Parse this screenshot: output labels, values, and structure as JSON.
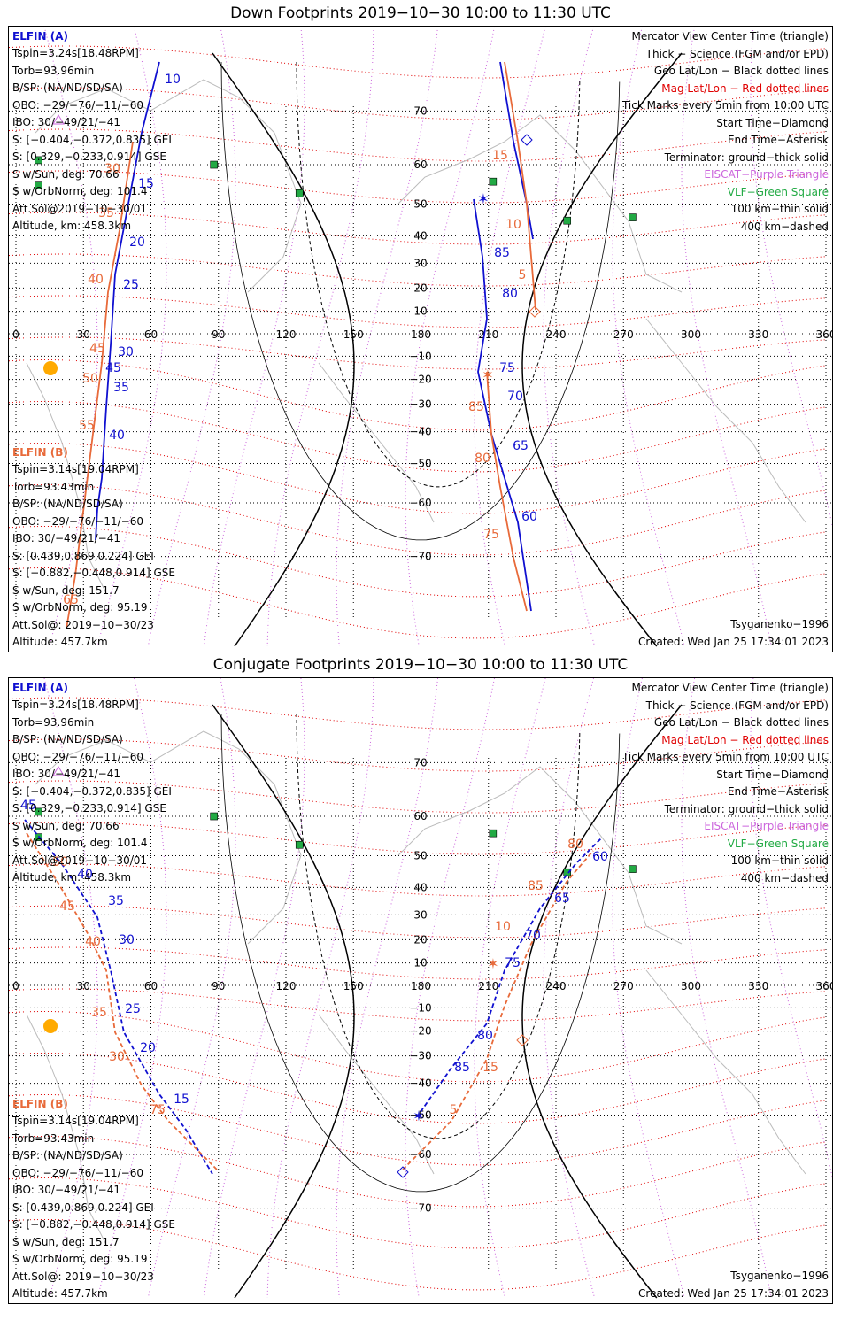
{
  "panels": [
    {
      "title": "Down Footprints 2019−10−30 10:00 to 11:30 UTC",
      "footer_left": "Altitude: 457.7km",
      "footer_right_top": "Tsyganenko−1996",
      "footer_right": "Created: Wed Jan 25 17:34:01 2023"
    },
    {
      "title": "Conjugate Footprints 2019−10−30 10:00 to 11:30 UTC",
      "footer_left": "Altitude: 457.7km",
      "footer_right_top": "Tsyganenko−1996",
      "footer_right": "Created: Wed Jan 25 17:34:01 2023"
    }
  ],
  "elfin_a": {
    "name": "ELFIN (A)",
    "lines": [
      "Tspin=3.24s[18.48RPM]",
      "Torb=93.96min",
      "B/SP: (NA/ND/SD/SA)",
      "OBO: −29/−76/−11/−60",
      "IBO: 30/−49/21/−41",
      "S: [−0.404,−0.372,0.835] GEI",
      "S: [0.329,−0.233,0.914] GSE",
      "S w/Sun, deg: 70.66",
      "S w/OrbNorm, deg: 101.4",
      "Att.Sol@2019−10−30/01",
      "Altitude, km: 458.3km"
    ]
  },
  "elfin_b": {
    "name": "ELFIN (B)",
    "lines": [
      "Tspin=3.14s[19.04RPM]",
      "Torb=93.43min",
      "B/SP: (NA/ND/SD/SA)",
      "OBO: −29/−76/−11/−60",
      "IBO: 30/−49/21/−41",
      "S: [0.439,0.869,0.224] GEI",
      "S: [−0.882,−0.448,0.914] GSE",
      "S w/Sun, deg: 151.7",
      "S w/OrbNorm, deg: 95.19",
      "Att.Sol@: 2019−10−30/23"
    ]
  },
  "legend": [
    {
      "text": "Mercator View Center Time (triangle)",
      "color": "#000000"
    },
    {
      "text": "Thick − Science (FGM and/or EPD)",
      "color": "#000000"
    },
    {
      "text": "Geo Lat/Lon − Black dotted lines",
      "color": "#000000"
    },
    {
      "text": "Mag Lat/Lon − Red dotted lines",
      "color": "#e00000"
    },
    {
      "text": "Tick Marks every 5min from 10:00 UTC",
      "color": "#000000"
    },
    {
      "text": "Start Time−Diamond",
      "color": "#000000"
    },
    {
      "text": "End Time−Asterisk",
      "color": "#000000"
    },
    {
      "text": "Terminator: ground−thick solid",
      "color": "#000000"
    },
    {
      "text": "EISCAT−Purple Triangle",
      "color": "#cc66dd"
    },
    {
      "text": "VLF−Green Square",
      "color": "#22aa44"
    },
    {
      "text": "100 km−thin solid",
      "color": "#000000"
    },
    {
      "text": "400 km−dashed",
      "color": "#000000"
    }
  ],
  "map": {
    "lon_ticks": [
      "0",
      "30",
      "60",
      "90",
      "120",
      "150",
      "180",
      "210",
      "240",
      "270",
      "300",
      "330",
      "360"
    ],
    "lat_ticks": [
      "70",
      "60",
      "50",
      "40",
      "30",
      "20",
      "10",
      "−10",
      "−20",
      "−30",
      "−40",
      "−50",
      "−60",
      "−70"
    ],
    "colors": {
      "elfin_a": "#1010d0",
      "elfin_b": "#e86a3a",
      "mag_grid": "#e00000",
      "geo_grid": "#000000",
      "eiscat": "#cc66dd",
      "vlf": "#22aa44"
    },
    "vlf_stations": [
      [
        88,
        60
      ],
      [
        10,
        61
      ],
      [
        10,
        55
      ],
      [
        126,
        53
      ],
      [
        212,
        56
      ],
      [
        245,
        45
      ],
      [
        274,
        46
      ]
    ]
  },
  "tracks": {
    "down": {
      "a_labels": [
        "10",
        "15",
        "20",
        "25",
        "30",
        "35",
        "40",
        "45",
        "60",
        "65",
        "70",
        "75",
        "80",
        "85"
      ],
      "b_labels": [
        "30",
        "35",
        "40",
        "45",
        "50",
        "55",
        "65",
        "75",
        "80",
        "85",
        "5",
        "10",
        "15"
      ]
    },
    "conj": {
      "a_labels": [
        "45",
        "40",
        "35",
        "30",
        "25",
        "20",
        "15",
        "80",
        "85",
        "75",
        "70",
        "65",
        "60"
      ],
      "b_labels": [
        "50",
        "45",
        "40",
        "35",
        "30",
        "75",
        "80",
        "85",
        "10",
        "5",
        "15"
      ]
    }
  }
}
